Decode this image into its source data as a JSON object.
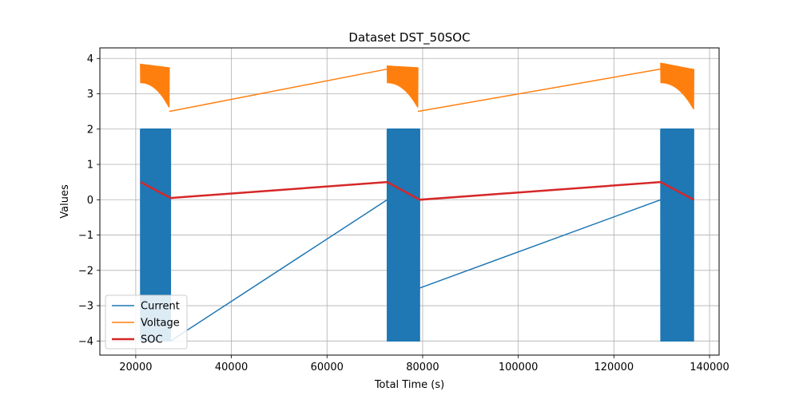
{
  "chart_data": {
    "type": "line",
    "title": "Dataset DST_50SOC",
    "xlabel": "Total Time (s)",
    "ylabel": "Values",
    "xlim": [
      12500,
      142000
    ],
    "ylim": [
      -4.4,
      4.3
    ],
    "xticks": [
      20000,
      40000,
      60000,
      80000,
      100000,
      120000,
      140000
    ],
    "xtick_labels": [
      "20000",
      "40000",
      "60000",
      "80000",
      "100000",
      "120000",
      "140000"
    ],
    "yticks": [
      -4,
      -3,
      -2,
      -1,
      0,
      1,
      2,
      3,
      4
    ],
    "ytick_labels": [
      "−4",
      "−3",
      "−2",
      "−1",
      "0",
      "1",
      "2",
      "3",
      "4"
    ],
    "grid": true,
    "legend_position": "lower-left",
    "series": [
      {
        "name": "Current",
        "color": "#1f77b4",
        "line_width": 1.5,
        "discharge_segments": [
          {
            "x_start": 21000,
            "x_end": 27300,
            "min": -4.0,
            "max": 2.0,
            "cycles": 60
          },
          {
            "x_start": 72600,
            "x_end": 79400,
            "min": -4.0,
            "max": 2.0,
            "cycles": 65
          },
          {
            "x_start": 129800,
            "x_end": 136700,
            "min": -4.0,
            "max": 2.0,
            "cycles": 65
          }
        ],
        "connectors": [
          {
            "x": [
              27300,
              72600
            ],
            "y": [
              -4.0,
              0.0
            ]
          },
          {
            "x": [
              79400,
              129800
            ],
            "y": [
              -2.5,
              0.0
            ]
          }
        ]
      },
      {
        "name": "Voltage",
        "color": "#ff7f0e",
        "line_width": 1.5,
        "discharge_segments": [
          {
            "x_start": 21000,
            "x_end": 27000,
            "high_start": 3.85,
            "high_end": 3.75,
            "low_start": 3.3,
            "low_end": 2.6,
            "cycles": 60
          },
          {
            "x_start": 72600,
            "x_end": 79000,
            "high_start": 3.8,
            "high_end": 3.75,
            "low_start": 3.3,
            "low_end": 2.6,
            "cycles": 65
          },
          {
            "x_start": 129800,
            "x_end": 136700,
            "high_start": 3.88,
            "high_end": 3.7,
            "low_start": 3.3,
            "low_end": 2.55,
            "cycles": 65
          }
        ],
        "connectors": [
          {
            "x": [
              27000,
              72600
            ],
            "y": [
              2.5,
              3.7
            ]
          },
          {
            "x": [
              79000,
              129800
            ],
            "y": [
              2.5,
              3.7
            ]
          }
        ]
      },
      {
        "name": "SOC",
        "color": "#d62728",
        "line_width": 2.5,
        "x": [
          21000,
          27300,
          72600,
          79400,
          129800,
          136700
        ],
        "y": [
          0.5,
          0.05,
          0.5,
          0.0,
          0.5,
          0.0
        ]
      }
    ]
  }
}
